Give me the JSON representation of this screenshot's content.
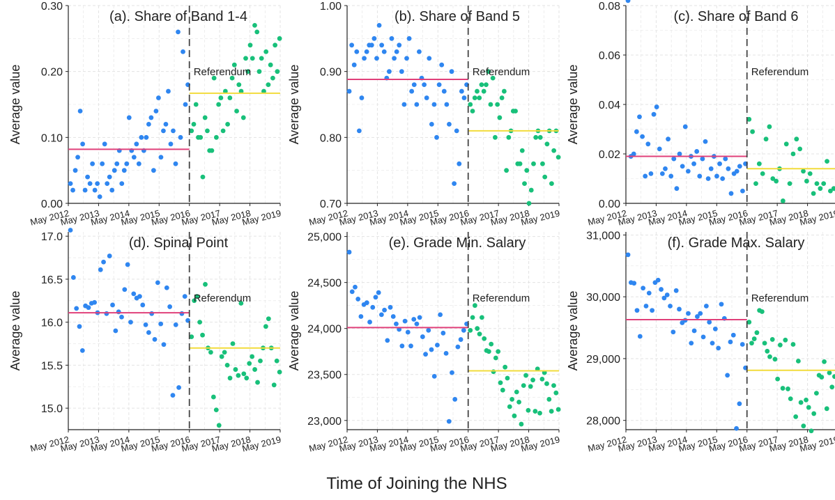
{
  "figure": {
    "xlabel": "Time of Joining the NHS",
    "xtick_labels": [
      "May 2012",
      "May 2013",
      "May 2014",
      "May 2015",
      "May 2016",
      "May 2017",
      "May 2018",
      "May 2019"
    ],
    "referendum_label": "Referendum",
    "colors": {
      "pre_points": "#2f86f0",
      "post_points": "#18c07a",
      "pre_mean": "#e0407a",
      "post_mean": "#f2dc3c",
      "referendum_line": "#444444",
      "grid": "#e3e3e3"
    }
  },
  "chart_data": [
    {
      "type": "scatter",
      "title": "(a). Share of Band 1-4",
      "ylabel": "Average value",
      "ylim": [
        0,
        0.3
      ],
      "yticks": [
        0,
        0.1,
        0.2,
        0.3
      ],
      "ytick_labels": [
        "0.00",
        "0.10",
        "0.20",
        "0.30"
      ],
      "pre_mean": 0.082,
      "post_mean": 0.167,
      "series": [
        {
          "values": [
            0.03,
            0.02,
            0.05,
            0.07,
            0.14,
            0.09,
            0.02,
            0.04,
            0.03,
            0.06,
            0.02,
            0.03,
            0.01,
            0.06,
            0.09,
            0.03,
            0.04,
            0.02,
            0.05,
            0.06,
            0.08,
            0.03,
            0.05,
            0.06,
            0.13,
            0.08,
            0.07,
            0.09,
            0.06,
            0.1,
            0.08,
            0.1,
            0.12,
            0.13,
            0.05,
            0.14,
            0.16,
            0.07,
            0.11,
            0.12,
            0.17,
            0.09,
            0.11,
            0.06,
            0.26,
            0.1,
            0.23,
            0.15,
            0.18
          ]
        },
        {
          "values": [
            0.11,
            0.12,
            0.15,
            0.1,
            0.1,
            0.04,
            0.13,
            0.11,
            0.08,
            0.08,
            0.19,
            0.1,
            0.15,
            0.16,
            0.11,
            0.17,
            0.12,
            0.16,
            0.19,
            0.21,
            0.14,
            0.18,
            0.17,
            0.13,
            0.22,
            0.2,
            0.24,
            0.22,
            0.27,
            0.26,
            0.2,
            0.22,
            0.17,
            0.23,
            0.18,
            0.21,
            0.19,
            0.24,
            0.2,
            0.25
          ]
        }
      ]
    },
    {
      "type": "scatter",
      "title": "(b). Share of Band 5",
      "ylabel": "Average value",
      "ylim": [
        0.7,
        1.0
      ],
      "yticks": [
        0.7,
        0.8,
        0.9,
        1.0
      ],
      "ytick_labels": [
        "0.70",
        "0.80",
        "0.90",
        "1.00"
      ],
      "pre_mean": 0.888,
      "post_mean": 0.81,
      "series": [
        {
          "values": [
            0.87,
            0.94,
            0.91,
            0.93,
            0.81,
            0.86,
            0.92,
            0.93,
            0.94,
            0.94,
            0.95,
            0.92,
            0.97,
            0.94,
            0.93,
            0.89,
            0.9,
            0.95,
            0.92,
            0.93,
            0.94,
            0.9,
            0.85,
            0.92,
            0.95,
            0.87,
            0.88,
            0.85,
            0.93,
            0.89,
            0.88,
            0.86,
            0.92,
            0.82,
            0.85,
            0.8,
            0.88,
            0.91,
            0.87,
            0.85,
            0.82,
            0.9,
            0.73,
            0.81,
            0.76,
            0.87,
            0.86,
            0.88
          ]
        },
        {
          "values": [
            0.85,
            0.84,
            0.86,
            0.87,
            0.86,
            0.88,
            0.87,
            0.88,
            0.9,
            0.85,
            0.89,
            0.8,
            0.85,
            0.83,
            0.86,
            0.87,
            0.75,
            0.8,
            0.81,
            0.84,
            0.84,
            0.76,
            0.76,
            0.78,
            0.73,
            0.75,
            0.7,
            0.72,
            0.76,
            0.8,
            0.81,
            0.8,
            0.76,
            0.74,
            0.79,
            0.81,
            0.73,
            0.78,
            0.81,
            0.77
          ]
        }
      ]
    },
    {
      "type": "scatter",
      "title": "(c). Share of Band 6",
      "ylabel": "Average value",
      "ylim": [
        0,
        0.08
      ],
      "yticks": [
        0,
        0.02,
        0.04,
        0.06,
        0.08
      ],
      "ytick_labels": [
        "0.00",
        "0.02",
        "0.04",
        "0.06",
        "0.08"
      ],
      "pre_mean": 0.019,
      "post_mean": 0.014,
      "series": [
        {
          "values": [
            0.082,
            0.019,
            0.02,
            0.029,
            0.035,
            0.027,
            0.011,
            0.024,
            0.012,
            0.036,
            0.039,
            0.022,
            0.012,
            0.014,
            0.026,
            0.011,
            0.018,
            0.006,
            0.02,
            0.015,
            0.031,
            0.013,
            0.019,
            0.016,
            0.021,
            0.011,
            0.018,
            0.025,
            0.01,
            0.014,
            0.019,
            0.011,
            0.016,
            0.01,
            0.018,
            0.014,
            0.004,
            0.012,
            0.013,
            0.015,
            0.005,
            0.016
          ]
        },
        {
          "values": [
            0.034,
            0.029,
            0.008,
            0.016,
            0.012,
            0.026,
            0.031,
            0.01,
            0.009,
            0.014,
            0.001,
            0.024,
            0.008,
            0.02,
            0.026,
            0.022,
            0.013,
            0.009,
            0.012,
            0.004,
            0.008,
            0.006,
            0.008,
            0.017,
            0.005,
            0.006,
            0.005
          ]
        }
      ]
    },
    {
      "type": "scatter",
      "title": "(d). Spinal Point",
      "ylabel": "Average value",
      "ylim": [
        14.75,
        17.05
      ],
      "yticks": [
        15.0,
        15.5,
        16.0,
        16.5,
        17.0
      ],
      "ytick_labels": [
        "15.0",
        "15.5",
        "16.0",
        "16.5",
        "17.0"
      ],
      "pre_mean": 16.11,
      "post_mean": 15.7,
      "series": [
        {
          "values": [
            17.07,
            16.52,
            16.16,
            15.95,
            15.67,
            16.19,
            16.17,
            16.22,
            16.23,
            16.11,
            16.61,
            16.7,
            16.1,
            16.77,
            16.2,
            15.9,
            16.12,
            16.06,
            16.38,
            16.67,
            16.0,
            16.33,
            16.28,
            16.3,
            16.2,
            15.97,
            15.88,
            16.1,
            15.8,
            16.46,
            15.98,
            15.74,
            16.4,
            16.18,
            15.15,
            15.97,
            15.24,
            16.1,
            16.3,
            16.02
          ]
        },
        {
          "values": [
            15.83,
            16.25,
            16.3,
            16.0,
            15.85,
            16.44,
            15.7,
            15.65,
            15.13,
            14.98,
            14.8,
            15.6,
            15.65,
            15.5,
            15.35,
            15.75,
            15.45,
            15.38,
            16.22,
            15.4,
            15.35,
            15.52,
            15.6,
            15.45,
            15.3,
            15.55,
            15.7,
            15.95,
            16.04,
            15.7,
            15.27,
            15.55,
            15.42
          ]
        }
      ]
    },
    {
      "type": "scatter",
      "title": "(e). Grade Min. Salary",
      "ylabel": "Average value",
      "ylim": [
        22900,
        25050
      ],
      "yticks": [
        23000,
        23500,
        24000,
        24500,
        25000
      ],
      "ytick_labels": [
        "23,000",
        "23,500",
        "24,000",
        "24,500",
        "25,000"
      ],
      "pre_mean": 24010,
      "post_mean": 23540,
      "series": [
        {
          "values": [
            24830,
            24400,
            24450,
            24320,
            24130,
            24260,
            24280,
            24070,
            24230,
            24340,
            24390,
            24150,
            24200,
            23870,
            24230,
            24130,
            24050,
            23990,
            23810,
            24080,
            23960,
            23810,
            24100,
            24050,
            24120,
            23910,
            23720,
            23980,
            23770,
            23480,
            23820,
            24150,
            23950,
            23730,
            22990,
            23520,
            23230,
            23800,
            23880,
            23980,
            24050
          ]
        },
        {
          "values": [
            23980,
            24120,
            24250,
            24000,
            23940,
            24120,
            23890,
            23760,
            23750,
            23830,
            23530,
            23680,
            23750,
            23410,
            23330,
            23580,
            23460,
            23150,
            23230,
            23050,
            23310,
            23200,
            22960,
            23380,
            23490,
            23110,
            23370,
            23440,
            23100,
            23560,
            23080,
            23450,
            23520,
            23400,
            23230,
            23100,
            23380,
            23300,
            23120
          ]
        }
      ]
    },
    {
      "type": "scatter",
      "title": "(f). Grade Max. Salary",
      "ylabel": "Average value",
      "ylim": [
        27850,
        31050
      ],
      "yticks": [
        28000,
        29000,
        30000,
        31000
      ],
      "ytick_labels": [
        "28,000",
        "29,000",
        "30,000",
        "31,000"
      ],
      "pre_mean": 29630,
      "post_mean": 28810,
      "series": [
        {
          "values": [
            30680,
            30230,
            30220,
            29780,
            29360,
            30140,
            29850,
            30060,
            29780,
            30230,
            30270,
            30120,
            29980,
            30030,
            29850,
            29430,
            30100,
            29800,
            29580,
            29620,
            29730,
            29250,
            29450,
            29680,
            29730,
            29350,
            29850,
            29590,
            29250,
            29480,
            29170,
            29880,
            29650,
            28730,
            29270,
            29380,
            27870,
            28270,
            29230,
            28850
          ]
        },
        {
          "values": [
            29590,
            29250,
            29320,
            29420,
            29780,
            29760,
            29250,
            29120,
            29030,
            29310,
            28990,
            28670,
            29220,
            28520,
            29300,
            28510,
            28350,
            29230,
            28060,
            28960,
            28290,
            27910,
            28330,
            28210,
            27830,
            28110,
            28440,
            28730,
            28700,
            28950,
            28190,
            28770,
            28540,
            28710,
            28900
          ]
        }
      ]
    }
  ]
}
